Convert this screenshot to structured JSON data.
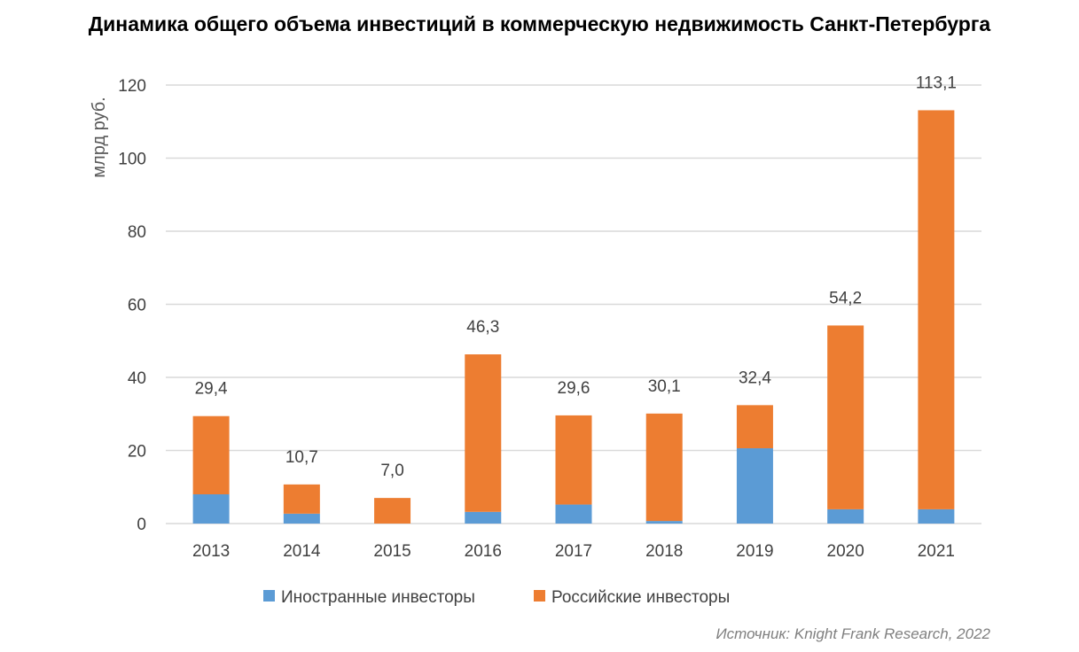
{
  "chart_data": {
    "type": "bar",
    "stacked": true,
    "title": "Динамика общего объема инвестиций в коммерческую недвижимость Санкт-Петербурга",
    "ylabel": "млрд руб.",
    "xlabel": "",
    "ylim": [
      0,
      120
    ],
    "yticks": [
      0,
      20,
      40,
      60,
      80,
      100,
      120
    ],
    "grid": true,
    "legend": "bottom",
    "categories": [
      "2013",
      "2014",
      "2015",
      "2016",
      "2017",
      "2018",
      "2019",
      "2020",
      "2021"
    ],
    "series": [
      {
        "name": "Иностранные инвесторы",
        "color": "#5b9bd5",
        "values": [
          8.0,
          2.7,
          0.0,
          3.2,
          5.2,
          0.7,
          20.6,
          3.9,
          3.9
        ]
      },
      {
        "name": "Российские инвесторы",
        "color": "#ed7d31",
        "values": [
          21.4,
          8.0,
          7.0,
          43.1,
          24.4,
          29.4,
          11.8,
          50.3,
          109.2
        ]
      }
    ],
    "totals": [
      29.4,
      10.7,
      7.0,
      46.3,
      29.6,
      30.1,
      32.4,
      54.2,
      113.1
    ],
    "total_labels": [
      "29,4",
      "10,7",
      "7,0",
      "46,3",
      "29,6",
      "30,1",
      "32,4",
      "54,2",
      "113,1"
    ],
    "source": "Источник: Knight Frank Research, 2022"
  }
}
